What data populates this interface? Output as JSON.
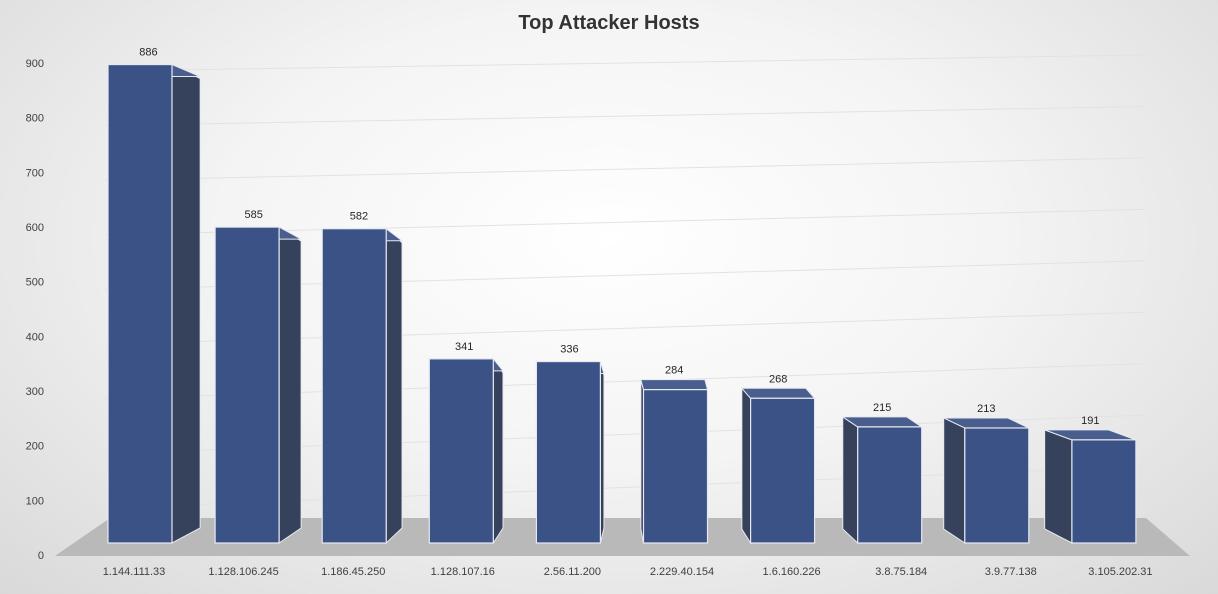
{
  "chart_data": {
    "type": "bar",
    "title": "Top Attacker Hosts",
    "xlabel": "",
    "ylabel": "",
    "categories": [
      "1.144.111.33",
      "1.128.106.245",
      "1.186.45.250",
      "1.128.107.16",
      "2.56.11.200",
      "2.229.40.154",
      "1.6.160.226",
      "3.8.75.184",
      "3.9.77.138",
      "3.105.202.31"
    ],
    "values": [
      886,
      585,
      582,
      341,
      336,
      284,
      268,
      215,
      213,
      191
    ],
    "ylim": [
      0,
      900
    ],
    "yticks": [
      "0",
      "100",
      "200",
      "300",
      "400",
      "500",
      "600",
      "700",
      "800",
      "900"
    ],
    "grid": true,
    "legend": "none",
    "style": "3d-column"
  },
  "colors": {
    "bar_front": "#3b5286",
    "bar_side": "#36415c",
    "bar_top": "#4a5e8e",
    "bar_edge": "#e6e9f0",
    "floor": "#b9b9b9",
    "gridline": "#e2e2e2"
  }
}
